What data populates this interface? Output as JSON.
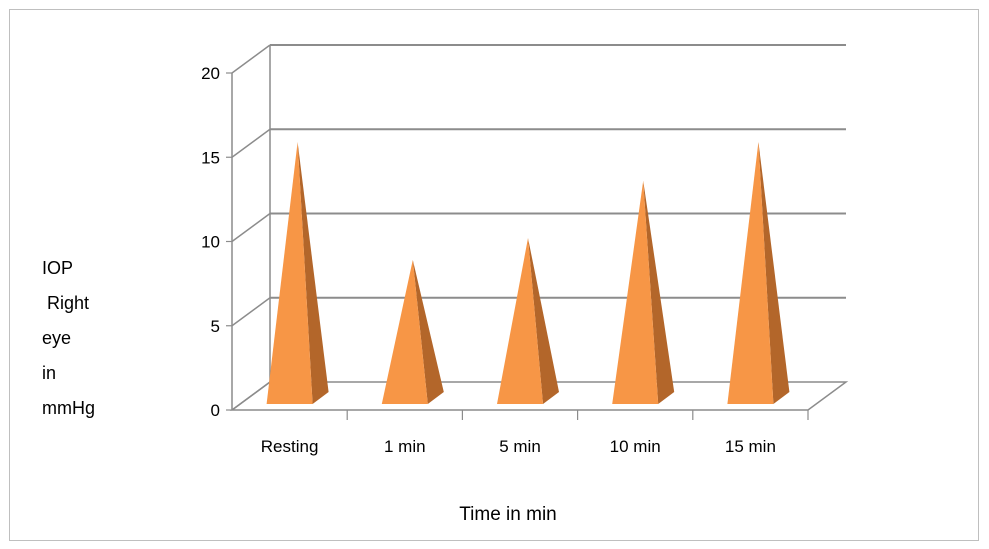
{
  "chart_data": {
    "type": "bar",
    "shape": "pyramid-3d",
    "categories": [
      "Resting",
      "1 min",
      "5 min",
      "10 min",
      "15 min"
    ],
    "values": [
      16.5,
      9.5,
      10.8,
      14.2,
      16.5
    ],
    "ylim": [
      0,
      20
    ],
    "yticks": [
      "0",
      "5",
      "10",
      "15",
      "20"
    ],
    "ylabel_lines": [
      "IOP",
      " Right",
      "eye",
      "in",
      "mmHg"
    ],
    "xlabel": "Time in min",
    "grid": true,
    "legend": "none",
    "colors": {
      "front": "#f79646",
      "side": "#b3662a",
      "grid": "#8c8c8c",
      "wall": "#8c8c8c"
    }
  }
}
